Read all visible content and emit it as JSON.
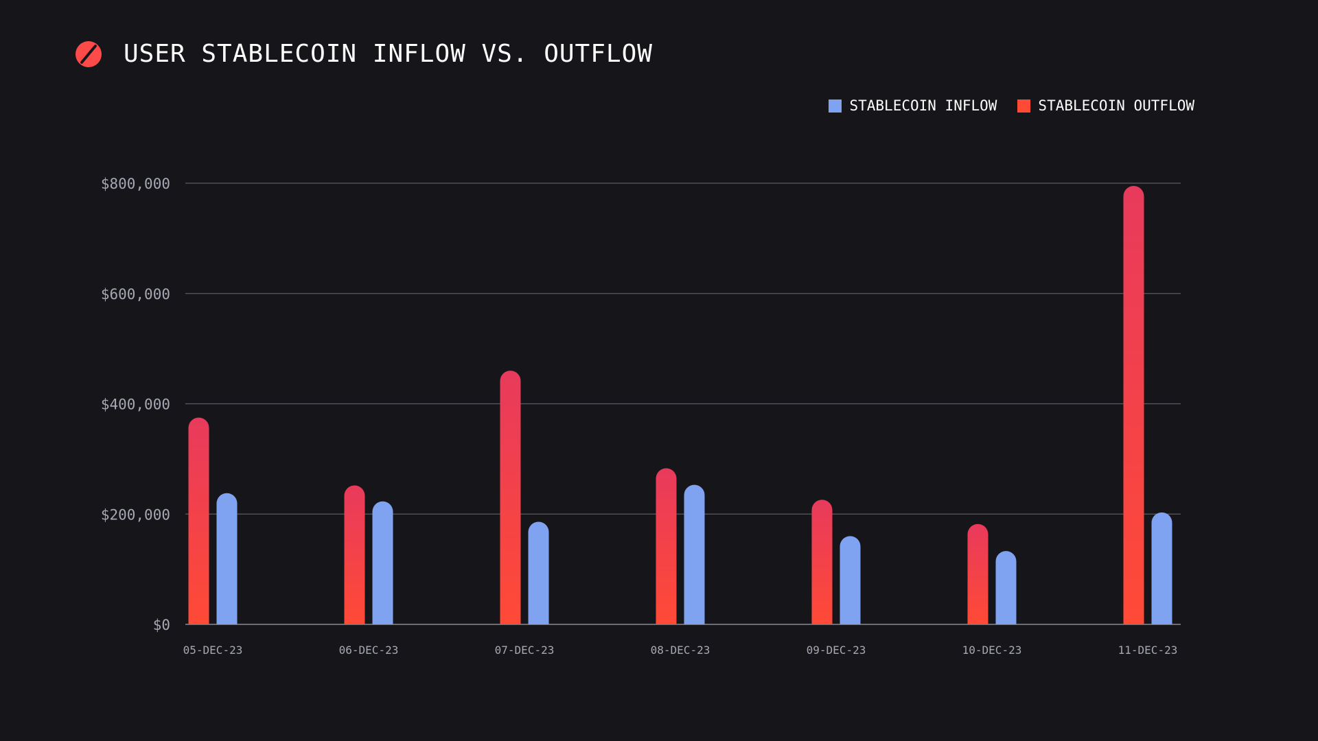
{
  "header": {
    "title": "USER STABLECOIN INFLOW VS. OUTFLOW",
    "logo_icon": "slash-circle-logo-icon"
  },
  "legend": {
    "items": [
      {
        "label": "STABLECOIN INFLOW",
        "color": "#7fa3f0"
      },
      {
        "label": "STABLECOIN OUTFLOW",
        "color": "#ff4a36"
      }
    ]
  },
  "colors": {
    "background": "#16161a",
    "grid": "#5b5c63",
    "axis": "#8a8b92",
    "tick_text": "#a6a8b3",
    "inflow": "#7fa3f0",
    "outflow_top": "#e83a5c",
    "outflow_bottom": "#ff4a36"
  },
  "chart_data": {
    "type": "bar",
    "title": "USER STABLECOIN INFLOW VS. OUTFLOW",
    "xlabel": "",
    "ylabel": "",
    "ylim": [
      0,
      800000
    ],
    "y_ticks": [
      0,
      200000,
      400000,
      600000,
      800000
    ],
    "y_tick_labels": [
      "$0",
      "$200,000",
      "$400,000",
      "$600,000",
      "$800,000"
    ],
    "categories": [
      "05-DEC-23",
      "06-DEC-23",
      "07-DEC-23",
      "08-DEC-23",
      "09-DEC-23",
      "10-DEC-23",
      "11-DEC-23"
    ],
    "series": [
      {
        "name": "STABLECOIN OUTFLOW",
        "values": [
          375000,
          252000,
          460000,
          283000,
          226000,
          182000,
          795000
        ]
      },
      {
        "name": "STABLECOIN INFLOW",
        "values": [
          238000,
          223000,
          186000,
          253000,
          160000,
          133000,
          203000
        ]
      }
    ],
    "grid": true,
    "legend_position": "top-right"
  }
}
